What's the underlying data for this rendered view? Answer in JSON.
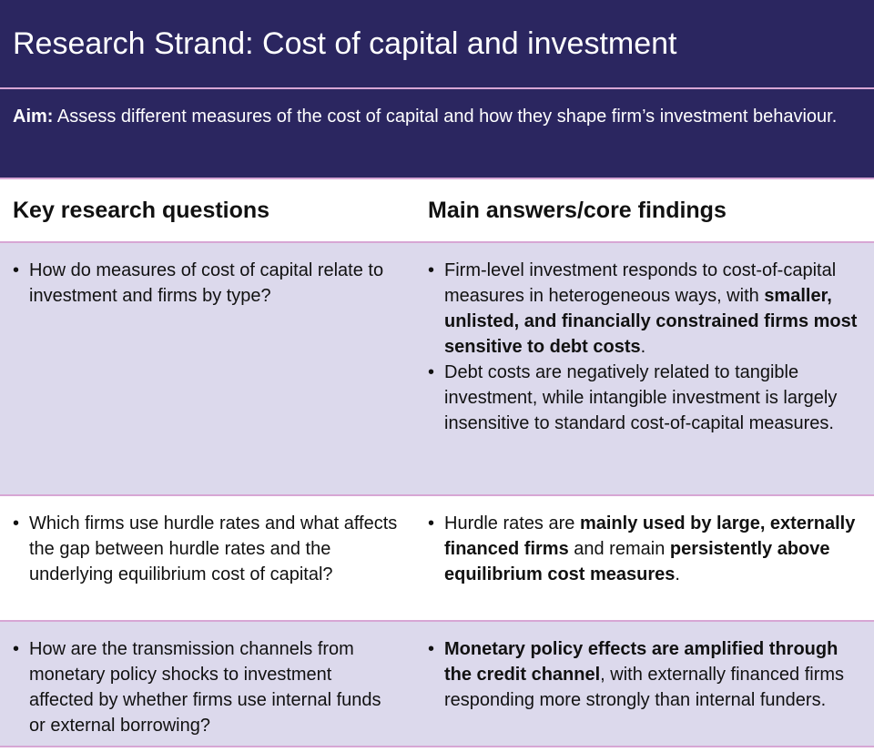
{
  "title": "Research Strand: Cost of capital and investment",
  "aim": {
    "label": "Aim:",
    "text": " Assess different measures of the cost of capital and how they shape firm’s investment behaviour."
  },
  "headers": {
    "questions": "Key research questions",
    "answers": "Main answers/core findings"
  },
  "colors": {
    "header_bg": "#2b2660",
    "row_shade": "#dcd9ec",
    "border": "#d7a6d4"
  },
  "rows": [
    {
      "question": "How do measures of cost of capital relate to investment and firms by type?",
      "answers": [
        [
          {
            "t": "Firm-level investment responds to cost-of-capital measures in heterogeneous ways, with ",
            "b": false
          },
          {
            "t": "smaller, unlisted, and financially constrained firms most sensitive to debt costs",
            "b": true
          },
          {
            "t": ".",
            "b": false
          }
        ],
        [
          {
            "t": "Debt costs are negatively related to tangible investment, while intangible investment is largely insensitive to standard cost-of-capital measures.",
            "b": false
          }
        ]
      ]
    },
    {
      "question": "Which firms use hurdle rates and what affects the gap between hurdle rates and the underlying equilibrium cost of capital?",
      "answers": [
        [
          {
            "t": "Hurdle rates are ",
            "b": false
          },
          {
            "t": "mainly used by large, externally financed firms",
            "b": true
          },
          {
            "t": " and remain ",
            "b": false
          },
          {
            "t": "persistently above equilibrium cost measures",
            "b": true
          },
          {
            "t": ".",
            "b": false
          }
        ]
      ]
    },
    {
      "question": "How are the transmission channels from monetary policy shocks to investment affected by whether firms use internal funds or external borrowing?",
      "answers": [
        [
          {
            "t": "Monetary policy effects are amplified through the credit channel",
            "b": true
          },
          {
            "t": ", with externally financed firms responding more strongly than internal funders.",
            "b": false
          }
        ]
      ]
    }
  ]
}
